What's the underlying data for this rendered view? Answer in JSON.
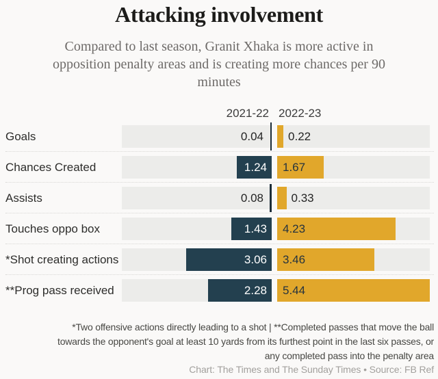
{
  "header": {
    "title": "Attacking involvement",
    "subtitle_lines": [
      "Compared to last season, Granit Xhaka is more active in",
      "opposition penalty areas and is creating more chances per 90",
      "minutes"
    ]
  },
  "chart_data": {
    "type": "bar",
    "orientation": "horizontal",
    "layout": "paired mirrored columns: 2021-22 bars grow leftward to a center axis, 2022-23 bars grow rightward",
    "title": "Attacking involvement",
    "categories": [
      "Goals",
      "Chances Created",
      "Assists",
      "Touches oppo box",
      "*Shot creating actions",
      "**Prog pass received"
    ],
    "series": [
      {
        "name": "2021-22",
        "color": "#23404f",
        "values": [
          0.04,
          1.24,
          0.08,
          1.43,
          3.06,
          2.28
        ]
      },
      {
        "name": "2022-23",
        "color": "#e1a72b",
        "values": [
          0.22,
          1.67,
          0.33,
          4.23,
          3.46,
          5.44
        ]
      }
    ],
    "xlim": [
      0,
      5.44
    ],
    "grid": false,
    "value_labels": true,
    "legend_position": "column headers above bars"
  },
  "footnote": {
    "lines": [
      "*Two offensive actions directly leading to a shot | **Completed passes that move the ball",
      "towards the opponent's goal at least 10 yards from its furthest point in the last six passes, or",
      "any completed pass into the penalty area"
    ]
  },
  "credit": "Chart: The Times and The Sunday Times • Source: FB Ref",
  "colors": {
    "navy": "#23404f",
    "gold": "#e1a72b",
    "track": "#ececea",
    "background": "#faf9f8",
    "tiny_bar_line": "#1b2c38"
  }
}
